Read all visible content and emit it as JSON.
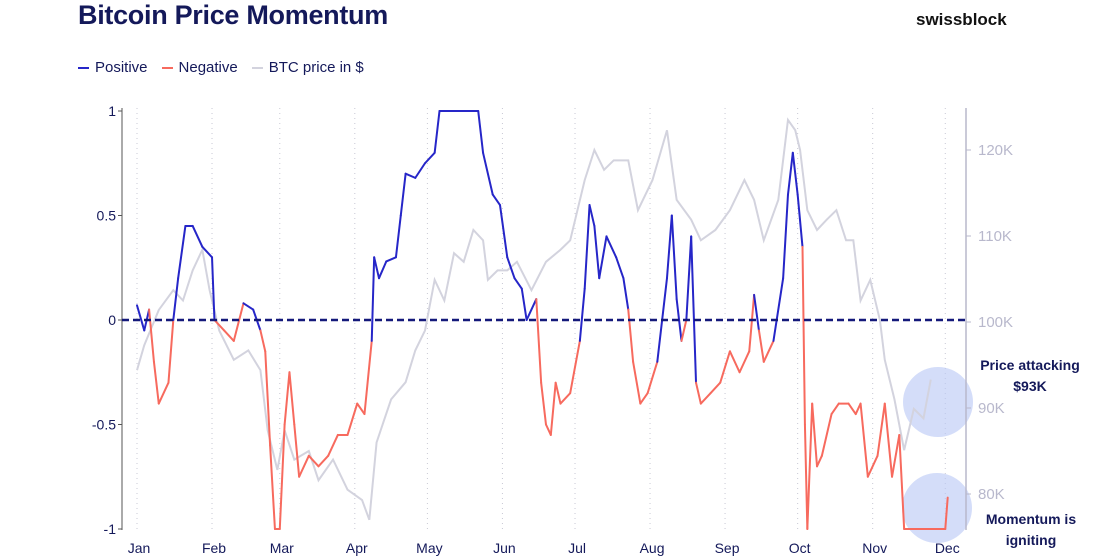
{
  "title": "Bitcoin Price Momentum",
  "brand": "swissblock",
  "legend": [
    {
      "label": "Positive",
      "color": "#2626c8"
    },
    {
      "label": "Negative",
      "color": "#f76a5e"
    },
    {
      "label": "BTC price in $",
      "color": "#d3d3de"
    }
  ],
  "chart_data": {
    "type": "line",
    "title": "Bitcoin Price Momentum",
    "x_ticks": [
      "Jan",
      "Feb",
      "Mar",
      "Apr",
      "May",
      "Jun",
      "Jul",
      "Aug",
      "Sep",
      "Oct",
      "Nov",
      "Dec"
    ],
    "y_left": {
      "ticks": [
        "1",
        "0.5",
        "0",
        "-0.5",
        "-1"
      ],
      "values": [
        1,
        0.5,
        0,
        -0.5,
        -1
      ],
      "range": [
        -1,
        1
      ]
    },
    "y_right": {
      "ticks": [
        "120K",
        "110K",
        "100K",
        "90K",
        "80K"
      ],
      "values": [
        120,
        110,
        100,
        90,
        80
      ],
      "range": [
        77,
        125
      ],
      "unit": "K $"
    },
    "zero_line": {
      "value": 0,
      "style": "dashed",
      "color": "#14197a"
    },
    "grid": "vertical dotted at months",
    "series": [
      {
        "name": "Momentum",
        "axis": "left",
        "colors": {
          "positive": "#2626c8",
          "negative": "#f76a5e"
        },
        "points": [
          [
            "01-01",
            0.07
          ],
          [
            "01-04",
            -0.05
          ],
          [
            "01-06",
            0.05
          ],
          [
            "01-08",
            -0.2
          ],
          [
            "01-10",
            -0.4
          ],
          [
            "01-14",
            -0.3
          ],
          [
            "01-16",
            0
          ],
          [
            "01-18",
            0.2
          ],
          [
            "01-21",
            0.45
          ],
          [
            "01-24",
            0.45
          ],
          [
            "01-28",
            0.35
          ],
          [
            "02-01",
            0.3
          ],
          [
            "02-02",
            0
          ],
          [
            "02-06",
            -0.05
          ],
          [
            "02-10",
            -0.1
          ],
          [
            "02-14",
            0.08
          ],
          [
            "02-18",
            0.05
          ],
          [
            "02-21",
            -0.05
          ],
          [
            "02-23",
            -0.15
          ],
          [
            "02-25",
            -0.6
          ],
          [
            "02-27",
            -1
          ],
          [
            "03-01",
            -1
          ],
          [
            "03-03",
            -0.5
          ],
          [
            "03-05",
            -0.25
          ],
          [
            "03-07",
            -0.5
          ],
          [
            "03-09",
            -0.75
          ],
          [
            "03-13",
            -0.65
          ],
          [
            "03-17",
            -0.7
          ],
          [
            "03-21",
            -0.65
          ],
          [
            "03-25",
            -0.55
          ],
          [
            "03-29",
            -0.55
          ],
          [
            "04-02",
            -0.4
          ],
          [
            "04-05",
            -0.45
          ],
          [
            "04-08",
            -0.1
          ],
          [
            "04-09",
            0.3
          ],
          [
            "04-11",
            0.2
          ],
          [
            "04-14",
            0.28
          ],
          [
            "04-18",
            0.3
          ],
          [
            "04-20",
            0.5
          ],
          [
            "04-22",
            0.7
          ],
          [
            "04-26",
            0.68
          ],
          [
            "04-30",
            0.75
          ],
          [
            "05-04",
            0.8
          ],
          [
            "05-06",
            1
          ],
          [
            "05-22",
            1
          ],
          [
            "05-24",
            0.8
          ],
          [
            "05-28",
            0.6
          ],
          [
            "05-31",
            0.55
          ],
          [
            "06-03",
            0.3
          ],
          [
            "06-06",
            0.2
          ],
          [
            "06-09",
            0.15
          ],
          [
            "06-11",
            0
          ],
          [
            "06-15",
            0.1
          ],
          [
            "06-17",
            -0.3
          ],
          [
            "06-19",
            -0.5
          ],
          [
            "06-21",
            -0.55
          ],
          [
            "06-23",
            -0.3
          ],
          [
            "06-25",
            -0.4
          ],
          [
            "06-29",
            -0.35
          ],
          [
            "07-03",
            -0.1
          ],
          [
            "07-05",
            0.15
          ],
          [
            "07-07",
            0.55
          ],
          [
            "07-09",
            0.45
          ],
          [
            "07-11",
            0.2
          ],
          [
            "07-14",
            0.4
          ],
          [
            "07-18",
            0.3
          ],
          [
            "07-21",
            0.2
          ],
          [
            "07-23",
            0.05
          ],
          [
            "07-25",
            -0.2
          ],
          [
            "07-28",
            -0.4
          ],
          [
            "07-31",
            -0.35
          ],
          [
            "08-04",
            -0.2
          ],
          [
            "08-08",
            0.2
          ],
          [
            "08-10",
            0.5
          ],
          [
            "08-12",
            0.1
          ],
          [
            "08-14",
            -0.1
          ],
          [
            "08-16",
            0
          ],
          [
            "08-18",
            0.4
          ],
          [
            "08-20",
            -0.3
          ],
          [
            "08-22",
            -0.4
          ],
          [
            "08-26",
            -0.35
          ],
          [
            "08-30",
            -0.3
          ],
          [
            "09-03",
            -0.15
          ],
          [
            "09-07",
            -0.25
          ],
          [
            "09-11",
            -0.15
          ],
          [
            "09-13",
            0.12
          ],
          [
            "09-15",
            -0.05
          ],
          [
            "09-17",
            -0.2
          ],
          [
            "09-21",
            -0.1
          ],
          [
            "09-25",
            0.2
          ],
          [
            "09-27",
            0.6
          ],
          [
            "09-29",
            0.8
          ],
          [
            "10-01",
            0.6
          ],
          [
            "10-03",
            0.35
          ],
          [
            "10-04",
            -0.5
          ],
          [
            "10-05",
            -1
          ],
          [
            "10-07",
            -0.4
          ],
          [
            "10-09",
            -0.7
          ],
          [
            "10-11",
            -0.65
          ],
          [
            "10-15",
            -0.45
          ],
          [
            "10-18",
            -0.4
          ],
          [
            "10-22",
            -0.4
          ],
          [
            "10-25",
            -0.45
          ],
          [
            "10-27",
            -0.4
          ],
          [
            "10-30",
            -0.75
          ],
          [
            "11-03",
            -0.65
          ],
          [
            "11-06",
            -0.4
          ],
          [
            "11-09",
            -0.75
          ],
          [
            "11-12",
            -0.55
          ],
          [
            "11-14",
            -1
          ],
          [
            "12-01",
            -1
          ],
          [
            "12-02",
            -0.85
          ]
        ]
      },
      {
        "name": "BTC price in $",
        "axis": "right",
        "color": "#d3d3de",
        "points": [
          [
            "01-01",
            94.4
          ],
          [
            "01-04",
            97.3
          ],
          [
            "01-10",
            101.4
          ],
          [
            "01-16",
            103.7
          ],
          [
            "01-20",
            102.5
          ],
          [
            "01-24",
            106
          ],
          [
            "01-28",
            108.4
          ],
          [
            "01-31",
            103.7
          ],
          [
            "02-04",
            99
          ],
          [
            "02-10",
            95.6
          ],
          [
            "02-16",
            96.7
          ],
          [
            "02-21",
            94.4
          ],
          [
            "02-24",
            87.4
          ],
          [
            "02-28",
            82.8
          ],
          [
            "03-03",
            87.4
          ],
          [
            "03-07",
            84
          ],
          [
            "03-13",
            85
          ],
          [
            "03-17",
            81.6
          ],
          [
            "03-23",
            84
          ],
          [
            "03-29",
            80.5
          ],
          [
            "04-04",
            79.3
          ],
          [
            "04-07",
            77
          ],
          [
            "04-10",
            86
          ],
          [
            "04-16",
            91
          ],
          [
            "04-22",
            93
          ],
          [
            "04-26",
            96.7
          ],
          [
            "04-30",
            99
          ],
          [
            "05-04",
            104.9
          ],
          [
            "05-08",
            102.5
          ],
          [
            "05-12",
            108
          ],
          [
            "05-16",
            107
          ],
          [
            "05-20",
            110.7
          ],
          [
            "05-24",
            109.5
          ],
          [
            "05-26",
            104.9
          ],
          [
            "05-30",
            106
          ],
          [
            "06-03",
            106
          ],
          [
            "06-07",
            107
          ],
          [
            "06-13",
            103.7
          ],
          [
            "06-19",
            107
          ],
          [
            "06-25",
            108.4
          ],
          [
            "06-29",
            109.5
          ],
          [
            "07-05",
            116.5
          ],
          [
            "07-09",
            120
          ],
          [
            "07-13",
            117.7
          ],
          [
            "07-17",
            118.8
          ],
          [
            "07-23",
            118.8
          ],
          [
            "07-27",
            113
          ],
          [
            "08-02",
            116.5
          ],
          [
            "08-08",
            122.3
          ],
          [
            "08-12",
            114.2
          ],
          [
            "08-18",
            111.9
          ],
          [
            "08-22",
            109.5
          ],
          [
            "08-28",
            110.7
          ],
          [
            "09-03",
            113
          ],
          [
            "09-09",
            116.5
          ],
          [
            "09-13",
            114.2
          ],
          [
            "09-17",
            109.5
          ],
          [
            "09-23",
            114.2
          ],
          [
            "09-27",
            123.5
          ],
          [
            "09-30",
            122.3
          ],
          [
            "10-02",
            120
          ],
          [
            "10-05",
            113
          ],
          [
            "10-09",
            110.7
          ],
          [
            "10-13",
            111.9
          ],
          [
            "10-17",
            113
          ],
          [
            "10-21",
            109.5
          ],
          [
            "10-24",
            109.5
          ],
          [
            "10-27",
            102.5
          ],
          [
            "10-31",
            104.9
          ],
          [
            "11-04",
            100.2
          ],
          [
            "11-06",
            95.6
          ],
          [
            "11-10",
            91
          ],
          [
            "11-14",
            85.1
          ],
          [
            "11-18",
            89.9
          ],
          [
            "11-22",
            88.8
          ],
          [
            "11-25",
            93.3
          ]
        ]
      }
    ],
    "annotations": [
      {
        "text_lines": [
          "Price attacking",
          "$93K"
        ]
      },
      {
        "text_lines": [
          "Momentum is",
          "igniting"
        ]
      }
    ],
    "highlight_color": "#b8c6f5"
  }
}
